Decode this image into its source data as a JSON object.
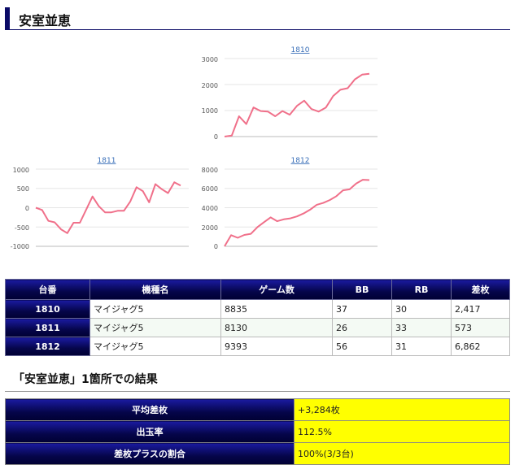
{
  "page": {
    "title": "安室並恵"
  },
  "charts": [
    {
      "id": "1810",
      "link_label": "1810",
      "y_ticks": [
        "3000",
        "2000",
        "1000",
        "0"
      ],
      "chart_data": {
        "type": "line",
        "ylim": [
          0,
          3000
        ],
        "line_color": "#f0708a",
        "values": [
          0,
          40,
          780,
          480,
          1120,
          980,
          960,
          780,
          980,
          840,
          1180,
          1380,
          1060,
          960,
          1120,
          1560,
          1800,
          1860,
          2200,
          2380,
          2417
        ]
      }
    },
    {
      "id": "1811",
      "link_label": "1811",
      "y_ticks": [
        "1000",
        "500",
        "0",
        "-500",
        "-1000"
      ],
      "chart_data": {
        "type": "line",
        "ylim": [
          -1000,
          1000
        ],
        "line_color": "#f0708a",
        "values": [
          0,
          -60,
          -340,
          -380,
          -560,
          -660,
          -390,
          -390,
          -50,
          290,
          40,
          -120,
          -120,
          -80,
          -80,
          160,
          530,
          430,
          140,
          610,
          480,
          380,
          660,
          573
        ]
      }
    },
    {
      "id": "1812",
      "link_label": "1812",
      "y_ticks": [
        "8000",
        "6000",
        "4000",
        "2000",
        "0"
      ],
      "chart_data": {
        "type": "line",
        "ylim": [
          0,
          8000
        ],
        "line_color": "#f0708a",
        "values": [
          0,
          1150,
          880,
          1180,
          1300,
          2000,
          2500,
          3000,
          2600,
          2800,
          2900,
          3100,
          3400,
          3800,
          4300,
          4500,
          4800,
          5200,
          5800,
          5900,
          6500,
          6900,
          6862
        ]
      }
    }
  ],
  "table": {
    "headers": [
      "台番",
      "機種名",
      "ゲーム数",
      "BB",
      "RB",
      "差枚"
    ],
    "rows": [
      {
        "no": "1810",
        "model": "マイジャグ5",
        "games": "8835",
        "bb": "37",
        "rb": "30",
        "diff": "2,417"
      },
      {
        "no": "1811",
        "model": "マイジャグ5",
        "games": "8130",
        "bb": "26",
        "rb": "33",
        "diff": "573"
      },
      {
        "no": "1812",
        "model": "マイジャグ5",
        "games": "9393",
        "bb": "56",
        "rb": "31",
        "diff": "6,862"
      }
    ]
  },
  "result": {
    "title": "「安室並恵」1箇所での結果",
    "rows": [
      {
        "label": "平均差枚",
        "value": "+3,284枚"
      },
      {
        "label": "出玉率",
        "value": "112.5%"
      },
      {
        "label": "差枚プラスの割合",
        "value": "100%(3/3台)"
      }
    ]
  }
}
